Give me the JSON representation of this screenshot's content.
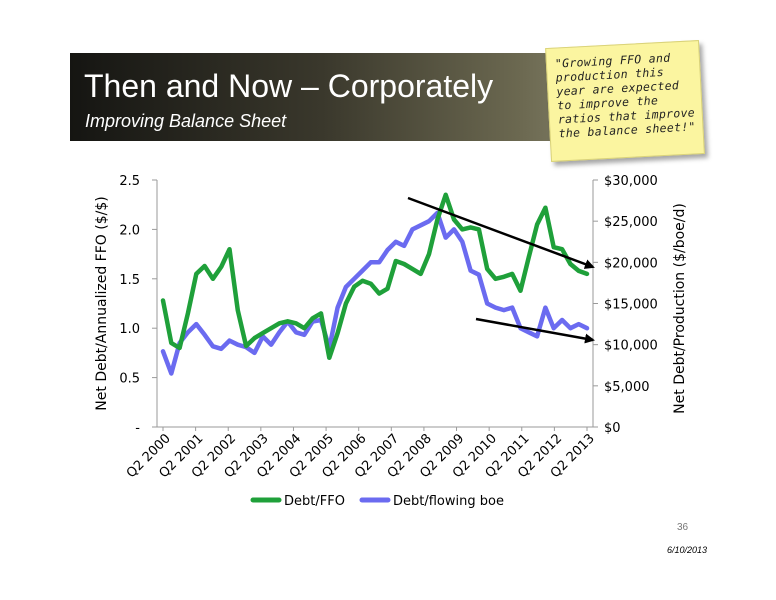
{
  "slide": {
    "title": "Then and Now – Corporately",
    "subtitle": "Improving Balance Sheet",
    "note": "\"Growing FFO and production this year are expected to improve the ratios that improve the balance sheet!\"",
    "page_number": "36",
    "date": "6/10/2013"
  },
  "chart_data": {
    "type": "line",
    "x_tick_labels": [
      "Q2 2000",
      "Q2 2001",
      "Q2 2002",
      "Q2 2003",
      "Q2 2004",
      "Q2 2005",
      "Q2 2006",
      "Q2 2007",
      "Q2 2008",
      "Q2 2009",
      "Q2 2010",
      "Q2 2011",
      "Q2 2012",
      "Q2 2013"
    ],
    "x_start_quarter": "Q2 2000",
    "x_end_quarter": "Q2 2013",
    "ylabel_left": "Net Debt/Annualized FFO ($/$)",
    "ylabel_right": "Net Debt/Production ($/boe/d)",
    "ylim_left": [
      0,
      2.5
    ],
    "ylim_right": [
      0,
      30000
    ],
    "y_ticks_left": [
      "2.5",
      "2.0",
      "1.5",
      "1.0",
      "0.5",
      "-"
    ],
    "y_ticks_left_values": [
      2.5,
      2.0,
      1.5,
      1.0,
      0.5,
      0
    ],
    "y_ticks_right": [
      "$30,000",
      "$25,000",
      "$20,000",
      "$15,000",
      "$10,000",
      "$5,000",
      "$0"
    ],
    "y_ticks_right_values": [
      30000,
      25000,
      20000,
      15000,
      10000,
      5000,
      0
    ],
    "grid": false,
    "legend_position": "bottom",
    "series": [
      {
        "name": "Debt/FFO",
        "color": "#1fa03a",
        "axis": "left",
        "values": [
          1.28,
          0.85,
          0.8,
          1.15,
          1.55,
          1.63,
          1.5,
          1.62,
          1.8,
          1.18,
          0.82,
          0.9,
          0.95,
          1.0,
          1.05,
          1.07,
          1.05,
          1.0,
          1.1,
          1.15,
          0.7,
          0.95,
          1.25,
          1.42,
          1.48,
          1.45,
          1.35,
          1.4,
          1.68,
          1.65,
          1.6,
          1.55,
          1.75,
          2.1,
          2.35,
          2.1,
          2.0,
          2.02,
          2.0,
          1.6,
          1.5,
          1.52,
          1.55,
          1.38,
          1.72,
          2.05,
          2.22,
          1.82,
          1.8,
          1.65,
          1.58,
          1.55
        ]
      },
      {
        "name": "Debt/flowing boe",
        "color": "#6b6bf0",
        "axis": "right",
        "values": [
          9200,
          6500,
          10200,
          11500,
          12500,
          11200,
          9800,
          9500,
          10500,
          10000,
          9700,
          9000,
          11000,
          10000,
          11500,
          12800,
          11500,
          11200,
          12800,
          13000,
          9600,
          14500,
          17000,
          18000,
          19000,
          20000,
          20000,
          21500,
          22500,
          22000,
          24000,
          24500,
          25000,
          26000,
          23000,
          24000,
          22500,
          19000,
          18500,
          15000,
          14500,
          14200,
          14500,
          12000,
          11500,
          11000,
          14500,
          12000,
          13000,
          12000,
          12500,
          12000
        ]
      }
    ],
    "annotations": [
      "trend-arrow-debt-ffo",
      "trend-arrow-debt-boe"
    ]
  }
}
